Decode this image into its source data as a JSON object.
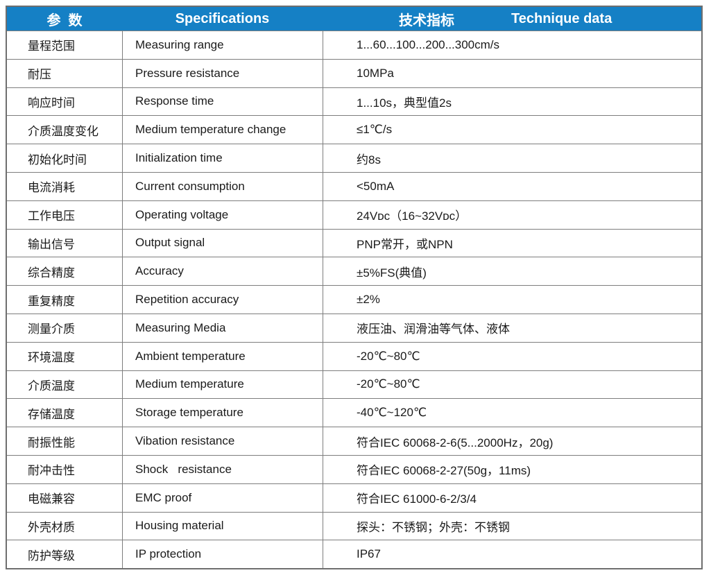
{
  "header": {
    "param_label": "参  数",
    "spec_label": "Specifications",
    "tech_label_cn": "技术指标",
    "tech_label_en": "Technique data"
  },
  "colors": {
    "header_bg": "#1580c5",
    "header_text": "#ffffff",
    "border": "#7d7d7d",
    "outer_border": "#6e6e6e",
    "body_text": "#1a1a1a"
  },
  "rows": [
    {
      "cn": "量程范围",
      "en": "Measuring range",
      "val": "1...60...100...200...300cm/s"
    },
    {
      "cn": "耐压",
      "en": "Pressure resistance",
      "val": "10MPa"
    },
    {
      "cn": "响应时间",
      "en": "Response time",
      "val": "1...10s，典型值2s"
    },
    {
      "cn": "介质温度变化",
      "en": "Medium temperature change",
      "val": "≤1℃/s"
    },
    {
      "cn": "初始化时间",
      "en": "Initialization time",
      "val": "约8s"
    },
    {
      "cn": "电流消耗",
      "en": "Current consumption",
      "val": "<50mA"
    },
    {
      "cn": "工作电压",
      "en": "Operating voltage",
      "val": "24Vᴅᴄ（16~32Vᴅᴄ）"
    },
    {
      "cn": "输出信号",
      "en": "Output signal",
      "val": "PNP常开，或NPN"
    },
    {
      "cn": "综合精度",
      "en": "Accuracy",
      "val": "±5%FS(典值)"
    },
    {
      "cn": "重复精度",
      "en": "Repetition accuracy",
      "val": "±2%"
    },
    {
      "cn": "测量介质",
      "en": "Measuring Media",
      "val": "液压油、润滑油等气体、液体"
    },
    {
      "cn": "环境温度",
      "en": "Ambient temperature",
      "val": "-20℃~80℃"
    },
    {
      "cn": "介质温度",
      "en": "Medium temperature",
      "val": "-20℃~80℃"
    },
    {
      "cn": "存储温度",
      "en": "Storage temperature",
      "val": "-40℃~120℃"
    },
    {
      "cn": "耐振性能",
      "en": "Vibation resistance",
      "val": "符合IEC 60068-2-6(5...2000Hz，20g)"
    },
    {
      "cn": "耐冲击性",
      "en": "Shock   resistance",
      "val": "符合IEC 60068-2-27(50g，11ms)"
    },
    {
      "cn": "电磁兼容",
      "en": "EMC proof",
      "val": "符合IEC 61000-6-2/3/4"
    },
    {
      "cn": "外壳材质",
      "en": "Housing material",
      "val": "探头：不锈钢；外壳：不锈钢"
    },
    {
      "cn": "防护等级",
      "en": "IP protection",
      "val": "IP67"
    }
  ]
}
